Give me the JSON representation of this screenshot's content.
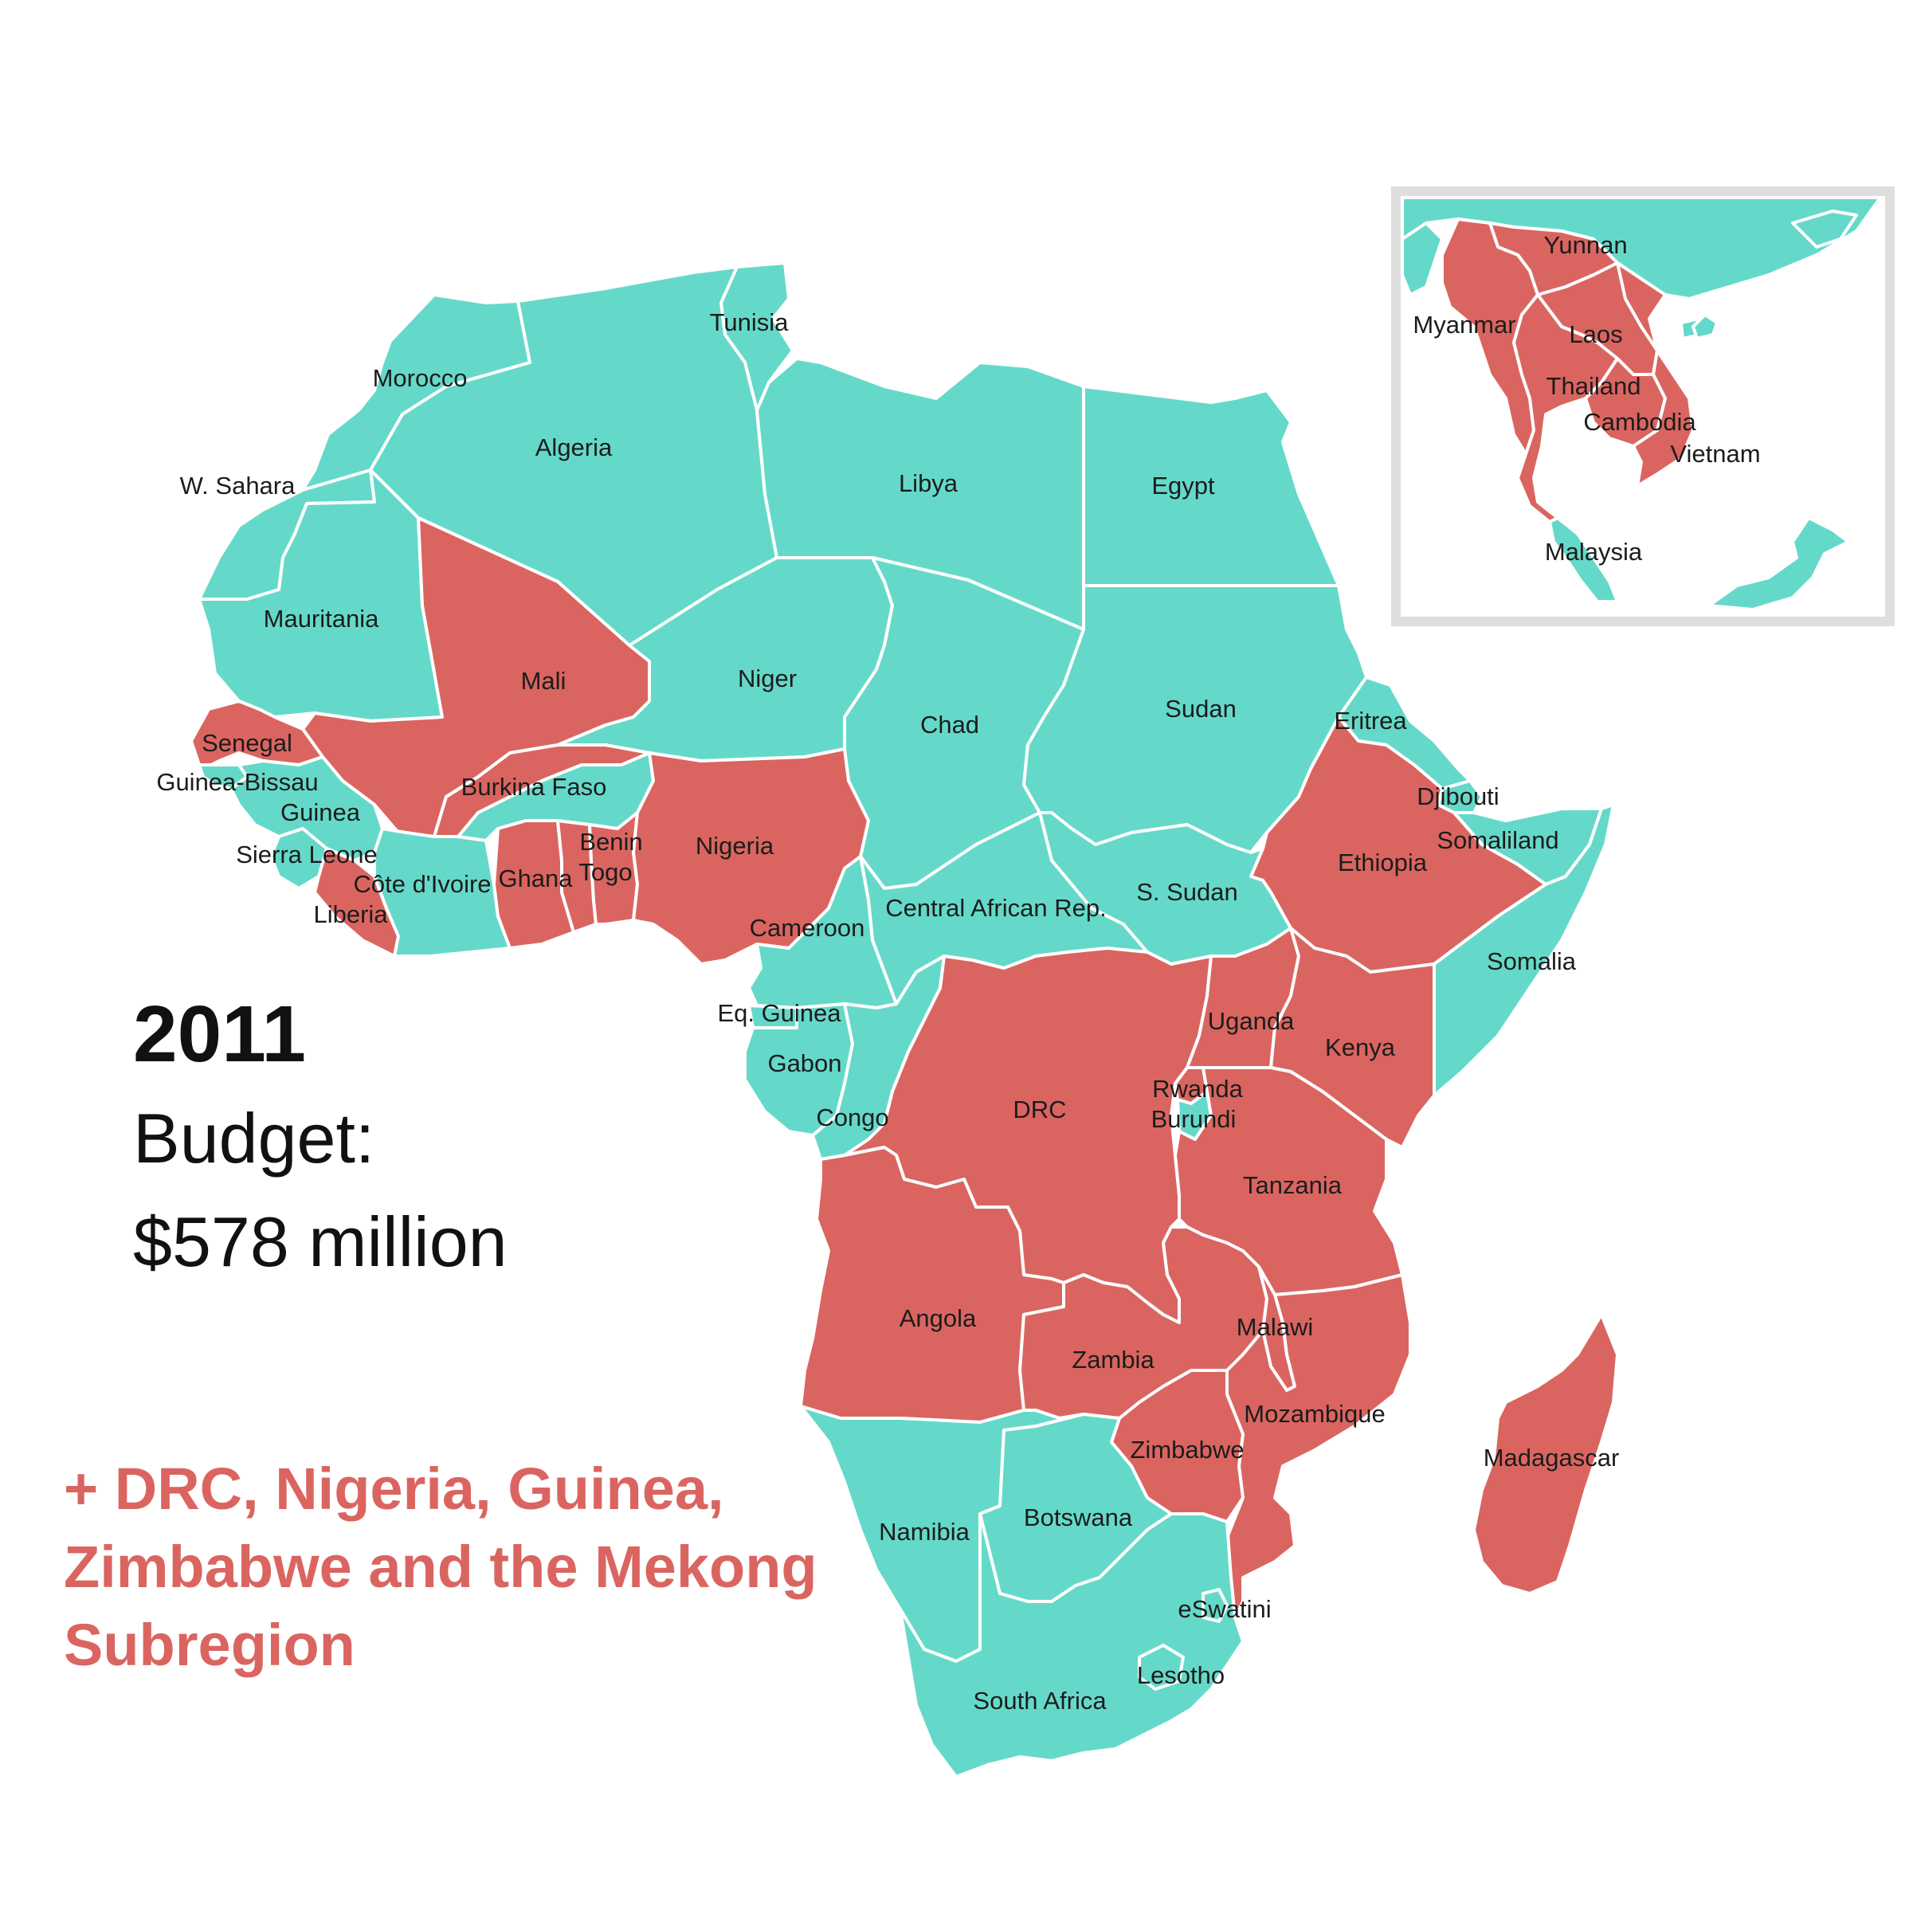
{
  "colors": {
    "included": "#da6560",
    "other": "#65d9c9",
    "border": "#ffffff",
    "inset_frame": "#dedede",
    "note_text": "#da6560"
  },
  "headline": {
    "year": "2011",
    "budget_label": "Budget:",
    "budget_value": "$578 million"
  },
  "note": "+ DRC, Nigeria, Guinea, Zimbabwe and the Mekong Subregion",
  "legend_items": [
    {
      "status": "included",
      "color": "#da6560"
    },
    {
      "status": "other",
      "color": "#65d9c9"
    }
  ],
  "labels": {
    "tunisia": "Tunisia",
    "morocco": "Morocco",
    "algeria": "Algeria",
    "libya": "Libya",
    "egypt": "Egypt",
    "wsahara": "W. Sahara",
    "mauritania": "Mauritania",
    "mali": "Mali",
    "niger": "Niger",
    "chad": "Chad",
    "sudan": "Sudan",
    "eritrea": "Eritrea",
    "senegal": "Senegal",
    "guineabissau": "Guinea-Bissau",
    "guinea": "Guinea",
    "burkinafaso": "Burkina Faso",
    "djibouti": "Djibouti",
    "somaliland": "Somaliland",
    "sierraleone": "Sierra Leone",
    "cotedivoire": "Côte d'Ivoire",
    "ghana": "Ghana",
    "benin": "Benin",
    "togo": "Togo",
    "nigeria": "Nigeria",
    "ethiopia": "Ethiopia",
    "liberia": "Liberia",
    "ssudan": "S. Sudan",
    "car": "Central African Rep.",
    "cameroon": "Cameroon",
    "somalia": "Somalia",
    "eqguinea": "Eq. Guinea",
    "uganda": "Uganda",
    "kenya": "Kenya",
    "gabon": "Gabon",
    "drc": "DRC",
    "rwanda": "Rwanda",
    "burundi": "Burundi",
    "congo": "Congo",
    "tanzania": "Tanzania",
    "angola": "Angola",
    "malawi": "Malawi",
    "zambia": "Zambia",
    "mozambique": "Mozambique",
    "zimbabwe": "Zimbabwe",
    "madagascar": "Madagascar",
    "namibia": "Namibia",
    "botswana": "Botswana",
    "eswatini": "eSwatini",
    "lesotho": "Lesotho",
    "southafrica": "South Africa",
    "yunnan": "Yunnan",
    "myanmar": "Myanmar",
    "laos": "Laos",
    "thailand": "Thailand",
    "cambodia": "Cambodia",
    "vietnam": "Vietnam",
    "malaysia": "Malaysia"
  }
}
